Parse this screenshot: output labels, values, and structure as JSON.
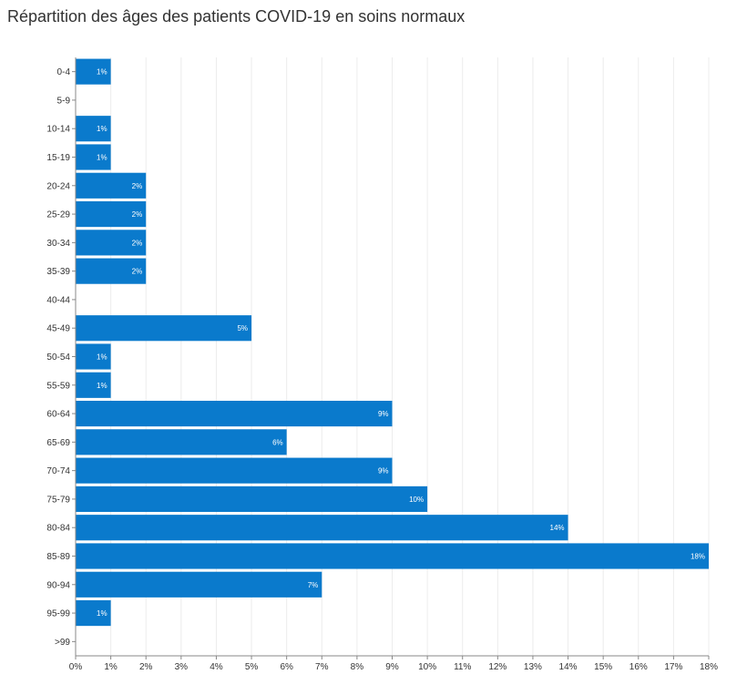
{
  "title": "Répartition des âges des patients COVID-19 en soins normaux",
  "colors": {
    "bar": "#0a7acc",
    "grid": "#ececec",
    "axis": "#888888"
  },
  "chart_data": {
    "type": "bar",
    "orientation": "horizontal",
    "title": "Répartition des âges des patients COVID-19 en soins normaux",
    "xlabel": "",
    "ylabel": "",
    "xlim": [
      0,
      18
    ],
    "x_ticks": [
      "0%",
      "1%",
      "2%",
      "3%",
      "4%",
      "5%",
      "6%",
      "7%",
      "8%",
      "9%",
      "10%",
      "11%",
      "12%",
      "13%",
      "14%",
      "15%",
      "16%",
      "17%",
      "18%"
    ],
    "categories": [
      "0-4",
      "5-9",
      "10-14",
      "15-19",
      "20-24",
      "25-29",
      "30-34",
      "35-39",
      "40-44",
      "45-49",
      "50-54",
      "55-59",
      "60-64",
      "65-69",
      "70-74",
      "75-79",
      "80-84",
      "85-89",
      "90-94",
      "95-99",
      ">99"
    ],
    "values": [
      1,
      0,
      1,
      1,
      2,
      2,
      2,
      2,
      0,
      5,
      1,
      1,
      9,
      6,
      9,
      10,
      14,
      18,
      7,
      1,
      0
    ],
    "labels": [
      "1%",
      "",
      "1%",
      "1%",
      "2%",
      "2%",
      "2%",
      "2%",
      "",
      "5%",
      "1%",
      "1%",
      "9%",
      "6%",
      "9%",
      "10%",
      "14%",
      "18%",
      "7%",
      "1%",
      ""
    ],
    "grid": true,
    "legend": "none"
  }
}
